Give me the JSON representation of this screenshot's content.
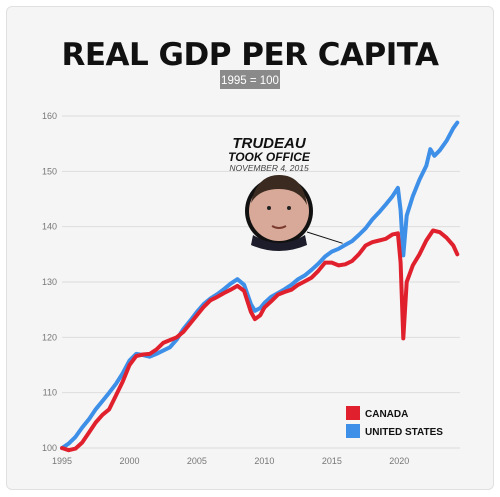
{
  "chart_data": {
    "type": "line",
    "title": "REAL GDP PER CAPITA",
    "subtitle": "1995 = 100",
    "xlim": [
      1995,
      2024.5
    ],
    "ylim": [
      100,
      160
    ],
    "x_ticks": [
      1995,
      2000,
      2005,
      2010,
      2015,
      2020
    ],
    "y_ticks": [
      100,
      110,
      120,
      130,
      140,
      150,
      160
    ],
    "grid": "horizontal",
    "legend": "bottom-right",
    "annotation": {
      "line1": "TRUDEAU",
      "line2": "TOOK OFFICE",
      "line3": "NOVEMBER 4, 2015",
      "x": 2015.8,
      "y": 137
    },
    "series": [
      {
        "name": "CANADA",
        "color": "#e0212d",
        "points": [
          [
            1995.0,
            100
          ],
          [
            1995.5,
            99.6
          ],
          [
            1996.0,
            99.9
          ],
          [
            1996.5,
            101.0
          ],
          [
            1997.0,
            102.8
          ],
          [
            1997.5,
            104.6
          ],
          [
            1998.0,
            106.0
          ],
          [
            1998.5,
            107.0
          ],
          [
            1999.0,
            109.5
          ],
          [
            1999.5,
            112.0
          ],
          [
            2000.0,
            115.0
          ],
          [
            2000.5,
            116.6
          ],
          [
            2001.0,
            116.9
          ],
          [
            2001.5,
            117.0
          ],
          [
            2002.0,
            117.8
          ],
          [
            2002.5,
            119.0
          ],
          [
            2003.0,
            119.5
          ],
          [
            2003.5,
            120.0
          ],
          [
            2004.0,
            121.0
          ],
          [
            2004.5,
            122.5
          ],
          [
            2005.0,
            124.0
          ],
          [
            2005.5,
            125.5
          ],
          [
            2006.0,
            126.7
          ],
          [
            2006.5,
            127.3
          ],
          [
            2007.0,
            128.0
          ],
          [
            2007.5,
            128.6
          ],
          [
            2008.0,
            129.3
          ],
          [
            2008.5,
            128.4
          ],
          [
            2009.0,
            124.6
          ],
          [
            2009.3,
            123.3
          ],
          [
            2009.7,
            124.0
          ],
          [
            2010.0,
            125.4
          ],
          [
            2010.5,
            126.5
          ],
          [
            2011.0,
            127.7
          ],
          [
            2011.5,
            128.2
          ],
          [
            2012.0,
            128.6
          ],
          [
            2012.5,
            129.5
          ],
          [
            2013.0,
            130.1
          ],
          [
            2013.5,
            130.8
          ],
          [
            2014.0,
            132.0
          ],
          [
            2014.5,
            133.5
          ],
          [
            2015.0,
            133.5
          ],
          [
            2015.5,
            133.0
          ],
          [
            2016.0,
            133.2
          ],
          [
            2016.5,
            133.8
          ],
          [
            2017.0,
            135.0
          ],
          [
            2017.5,
            136.6
          ],
          [
            2018.0,
            137.2
          ],
          [
            2018.5,
            137.5
          ],
          [
            2019.0,
            137.8
          ],
          [
            2019.5,
            138.6
          ],
          [
            2019.9,
            138.8
          ],
          [
            2020.1,
            133.5
          ],
          [
            2020.3,
            119.8
          ],
          [
            2020.55,
            130.0
          ],
          [
            2021.0,
            133.0
          ],
          [
            2021.5,
            135.0
          ],
          [
            2022.0,
            137.5
          ],
          [
            2022.5,
            139.3
          ],
          [
            2023.0,
            139.0
          ],
          [
            2023.5,
            138.0
          ],
          [
            2024.0,
            136.6
          ],
          [
            2024.3,
            135.0
          ]
        ]
      },
      {
        "name": "UNITED STATES",
        "color": "#3d8fe8",
        "points": [
          [
            1995.0,
            100
          ],
          [
            1995.5,
            100.8
          ],
          [
            1996.0,
            102.0
          ],
          [
            1996.5,
            103.7
          ],
          [
            1997.0,
            105.2
          ],
          [
            1997.5,
            107.0
          ],
          [
            1998.0,
            108.5
          ],
          [
            1998.5,
            110.0
          ],
          [
            1999.0,
            111.6
          ],
          [
            1999.5,
            113.5
          ],
          [
            2000.0,
            115.8
          ],
          [
            2000.5,
            117.0
          ],
          [
            2001.0,
            116.8
          ],
          [
            2001.5,
            116.5
          ],
          [
            2002.0,
            117.0
          ],
          [
            2002.5,
            117.6
          ],
          [
            2003.0,
            118.2
          ],
          [
            2003.5,
            119.6
          ],
          [
            2004.0,
            121.5
          ],
          [
            2004.5,
            123.0
          ],
          [
            2005.0,
            124.6
          ],
          [
            2005.5,
            126.0
          ],
          [
            2006.0,
            127.0
          ],
          [
            2006.5,
            127.8
          ],
          [
            2007.0,
            128.7
          ],
          [
            2007.5,
            129.7
          ],
          [
            2008.0,
            130.5
          ],
          [
            2008.5,
            129.5
          ],
          [
            2009.0,
            126.0
          ],
          [
            2009.3,
            124.8
          ],
          [
            2009.7,
            125.3
          ],
          [
            2010.0,
            126.2
          ],
          [
            2010.5,
            127.3
          ],
          [
            2011.0,
            128.0
          ],
          [
            2011.5,
            128.7
          ],
          [
            2012.0,
            129.5
          ],
          [
            2012.5,
            130.5
          ],
          [
            2013.0,
            131.2
          ],
          [
            2013.5,
            132.2
          ],
          [
            2014.0,
            133.3
          ],
          [
            2014.5,
            134.6
          ],
          [
            2015.0,
            135.5
          ],
          [
            2015.5,
            136.0
          ],
          [
            2016.0,
            136.7
          ],
          [
            2016.5,
            137.4
          ],
          [
            2017.0,
            138.5
          ],
          [
            2017.5,
            139.7
          ],
          [
            2018.0,
            141.3
          ],
          [
            2018.5,
            142.6
          ],
          [
            2019.0,
            144.0
          ],
          [
            2019.5,
            145.5
          ],
          [
            2019.9,
            147.0
          ],
          [
            2020.1,
            143.0
          ],
          [
            2020.3,
            134.8
          ],
          [
            2020.55,
            142.0
          ],
          [
            2021.0,
            145.5
          ],
          [
            2021.5,
            148.5
          ],
          [
            2022.0,
            151.0
          ],
          [
            2022.3,
            154.0
          ],
          [
            2022.6,
            152.8
          ],
          [
            2023.0,
            153.8
          ],
          [
            2023.5,
            155.5
          ],
          [
            2024.0,
            157.8
          ],
          [
            2024.3,
            158.8
          ]
        ]
      }
    ]
  }
}
